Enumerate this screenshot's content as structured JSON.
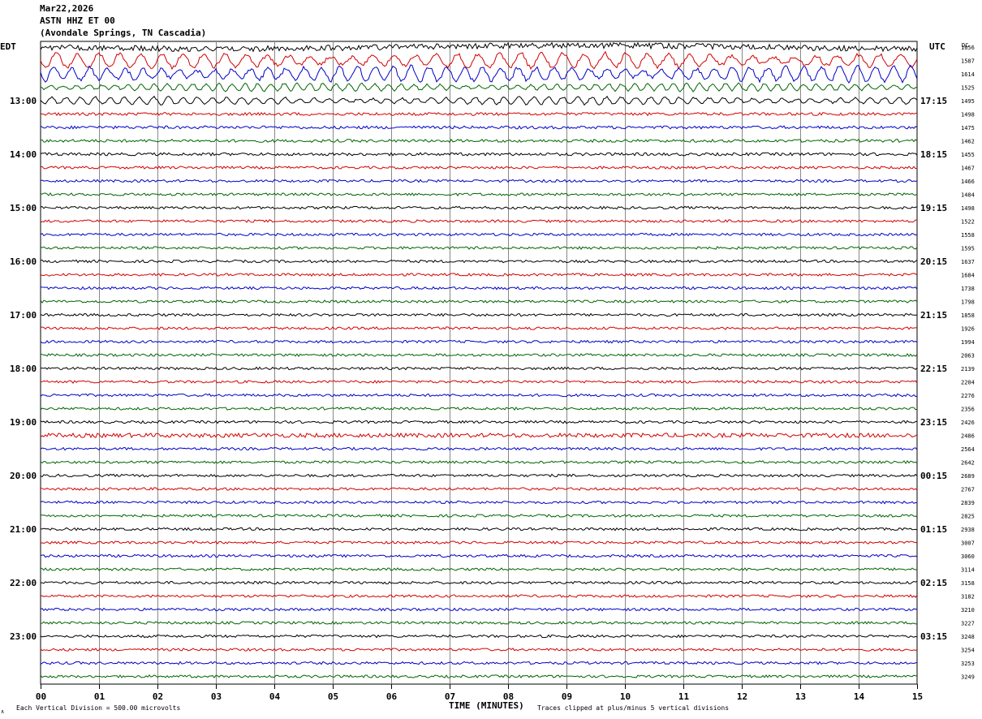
{
  "header": {
    "date": "Mar22,2026",
    "station": "ASTN HHZ ET 00",
    "location": "(Avondale Springs, TN Cascadia)"
  },
  "labels": {
    "left_tz": "EDT",
    "right_tz": "UTC",
    "dc_header": "DC",
    "x_title": "TIME (MINUTES)",
    "scale_note": "Each Vertical Division =  500.00 microvolts",
    "clip_note": "Traces clipped at plus/minus 5 vertical divisions",
    "corner_mark": "∧"
  },
  "chart_data": {
    "type": "line",
    "title": "ASTN HHZ ET 00",
    "xlabel": "TIME (MINUTES)",
    "xlim": [
      0,
      15
    ],
    "x_ticks": [
      "00",
      "01",
      "02",
      "03",
      "04",
      "05",
      "06",
      "07",
      "08",
      "09",
      "10",
      "11",
      "12",
      "13",
      "14",
      "15"
    ],
    "left_hour_labels": [
      "13:00",
      "14:00",
      "15:00",
      "16:00",
      "17:00",
      "18:00",
      "19:00",
      "20:00",
      "21:00",
      "22:00",
      "23:00"
    ],
    "right_hour_labels": [
      "17:15",
      "18:15",
      "19:15",
      "20:15",
      "21:15",
      "22:15",
      "23:15",
      "00:15",
      "01:15",
      "02:15",
      "03:15"
    ],
    "trace_colors": [
      "#000000",
      "#d40000",
      "#0000c8",
      "#006400"
    ],
    "dc_offsets": [
      1656,
      1587,
      1614,
      1525,
      1495,
      1498,
      1475,
      1462,
      1455,
      1467,
      1466,
      1484,
      1498,
      1522,
      1558,
      1595,
      1637,
      1684,
      1738,
      1798,
      1858,
      1926,
      1994,
      2063,
      2139,
      2204,
      2276,
      2356,
      2426,
      2486,
      2564,
      2642,
      2689,
      2767,
      2839,
      2825,
      2938,
      3007,
      3060,
      3114,
      3158,
      3182,
      3210,
      3227,
      3248,
      3254,
      3253,
      3249
    ],
    "trace_amplitude": [
      3.5,
      9,
      9,
      4.5,
      4.5,
      1.8,
      1.8,
      1.8,
      1.8,
      1.6,
      1.6,
      1.6,
      1.6,
      1.6,
      1.6,
      1.6,
      1.6,
      1.6,
      1.6,
      1.6,
      1.6,
      1.6,
      1.6,
      1.6,
      1.6,
      1.6,
      1.6,
      1.6,
      1.6,
      2.6,
      1.6,
      1.6,
      1.6,
      1.6,
      1.6,
      1.6,
      1.6,
      1.6,
      1.6,
      1.6,
      1.6,
      1.6,
      1.6,
      1.6,
      1.6,
      1.6,
      1.6,
      1.6
    ],
    "grid": true
  }
}
